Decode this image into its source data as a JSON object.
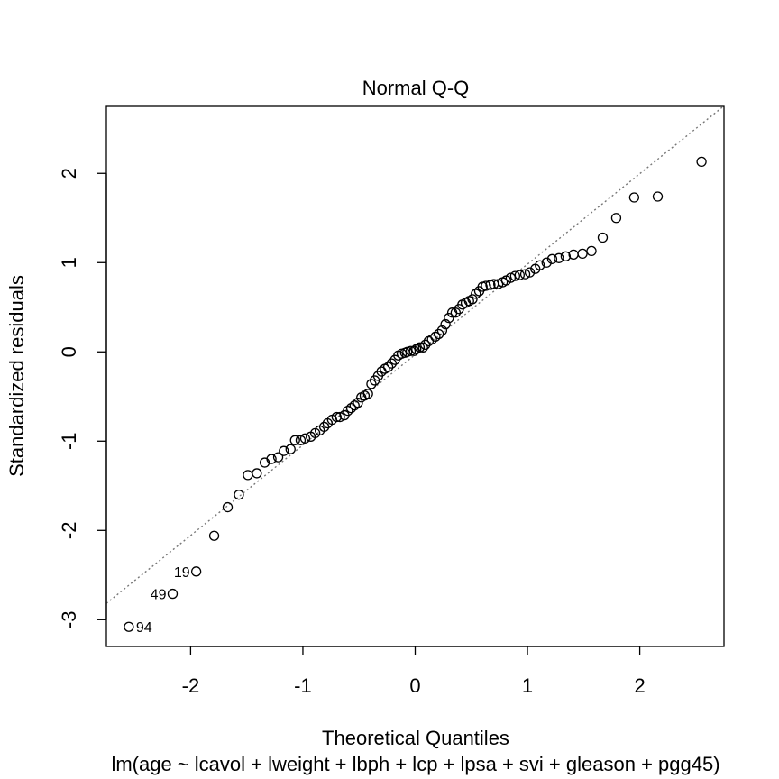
{
  "chart_data": {
    "type": "scatter",
    "title": "Normal Q-Q",
    "xlabel": "Theoretical Quantiles",
    "ylabel": "Standardized residuals",
    "subtitle": "lm(age ~ lcavol + lweight + lbph + lcp + lpsa + svi + gleason + pgg45)",
    "xlim": [
      -2.75,
      2.75
    ],
    "ylim": [
      -3.3,
      2.75
    ],
    "x_ticks": [
      -2,
      -1,
      0,
      1,
      2
    ],
    "x_tick_labels": [
      "-2",
      "-1",
      "0",
      "1",
      "2"
    ],
    "y_ticks": [
      -3,
      -2,
      -1,
      0,
      1,
      2
    ],
    "y_tick_labels": [
      "-3",
      "-2",
      "-1",
      "0",
      "1",
      "2"
    ],
    "grid": false,
    "reference_line": {
      "style": "dotted",
      "color": "#777777",
      "points": [
        [
          -2.75,
          -2.817
        ],
        [
          2.75,
          2.756
        ]
      ]
    },
    "series": [
      {
        "marker": "open-circle",
        "color": "#000000",
        "points": [
          [
            -2.55,
            -3.08
          ],
          [
            -2.16,
            -2.71
          ],
          [
            -1.95,
            -2.46
          ],
          [
            -1.79,
            -2.06
          ],
          [
            -1.67,
            -1.74
          ],
          [
            -1.57,
            -1.6
          ],
          [
            -1.49,
            -1.38
          ],
          [
            -1.41,
            -1.36
          ],
          [
            -1.34,
            -1.24
          ],
          [
            -1.28,
            -1.2
          ],
          [
            -1.22,
            -1.18
          ],
          [
            -1.17,
            -1.11
          ],
          [
            -1.11,
            -1.09
          ],
          [
            -1.07,
            -0.99
          ],
          [
            -1.02,
            -0.99
          ],
          [
            -0.98,
            -0.97
          ],
          [
            -0.93,
            -0.95
          ],
          [
            -0.89,
            -0.91
          ],
          [
            -0.85,
            -0.88
          ],
          [
            -0.81,
            -0.84
          ],
          [
            -0.78,
            -0.8
          ],
          [
            -0.74,
            -0.76
          ],
          [
            -0.7,
            -0.73
          ],
          [
            -0.67,
            -0.73
          ],
          [
            -0.63,
            -0.71
          ],
          [
            -0.6,
            -0.66
          ],
          [
            -0.57,
            -0.63
          ],
          [
            -0.54,
            -0.6
          ],
          [
            -0.51,
            -0.57
          ],
          [
            -0.48,
            -0.51
          ],
          [
            -0.45,
            -0.49
          ],
          [
            -0.42,
            -0.47
          ],
          [
            -0.39,
            -0.36
          ],
          [
            -0.36,
            -0.32
          ],
          [
            -0.33,
            -0.27
          ],
          [
            -0.3,
            -0.22
          ],
          [
            -0.27,
            -0.19
          ],
          [
            -0.24,
            -0.17
          ],
          [
            -0.21,
            -0.13
          ],
          [
            -0.18,
            -0.09
          ],
          [
            -0.15,
            -0.04
          ],
          [
            -0.12,
            -0.02
          ],
          [
            -0.09,
            -0.01
          ],
          [
            -0.07,
            0.0
          ],
          [
            -0.04,
            0.01
          ],
          [
            -0.01,
            0.01
          ],
          [
            0.01,
            0.03
          ],
          [
            0.04,
            0.05
          ],
          [
            0.07,
            0.05
          ],
          [
            0.09,
            0.08
          ],
          [
            0.12,
            0.12
          ],
          [
            0.15,
            0.14
          ],
          [
            0.18,
            0.17
          ],
          [
            0.21,
            0.2
          ],
          [
            0.24,
            0.24
          ],
          [
            0.27,
            0.31
          ],
          [
            0.3,
            0.38
          ],
          [
            0.33,
            0.44
          ],
          [
            0.36,
            0.44
          ],
          [
            0.39,
            0.48
          ],
          [
            0.42,
            0.53
          ],
          [
            0.45,
            0.55
          ],
          [
            0.48,
            0.57
          ],
          [
            0.51,
            0.59
          ],
          [
            0.54,
            0.65
          ],
          [
            0.57,
            0.68
          ],
          [
            0.6,
            0.73
          ],
          [
            0.63,
            0.74
          ],
          [
            0.67,
            0.75
          ],
          [
            0.7,
            0.76
          ],
          [
            0.74,
            0.76
          ],
          [
            0.78,
            0.78
          ],
          [
            0.81,
            0.8
          ],
          [
            0.85,
            0.83
          ],
          [
            0.89,
            0.85
          ],
          [
            0.93,
            0.86
          ],
          [
            0.98,
            0.87
          ],
          [
            1.02,
            0.89
          ],
          [
            1.07,
            0.93
          ],
          [
            1.11,
            0.97
          ],
          [
            1.17,
            1.0
          ],
          [
            1.22,
            1.04
          ],
          [
            1.28,
            1.05
          ],
          [
            1.34,
            1.07
          ],
          [
            1.41,
            1.09
          ],
          [
            1.49,
            1.1
          ],
          [
            1.57,
            1.13
          ],
          [
            1.67,
            1.28
          ],
          [
            1.79,
            1.5
          ],
          [
            1.95,
            1.73
          ],
          [
            2.16,
            1.74
          ],
          [
            2.55,
            2.13
          ]
        ],
        "point_labels": [
          {
            "text": "94",
            "point_index": 0
          },
          {
            "text": "49",
            "point_index": 1
          },
          {
            "text": "19",
            "point_index": 2
          }
        ]
      }
    ]
  }
}
